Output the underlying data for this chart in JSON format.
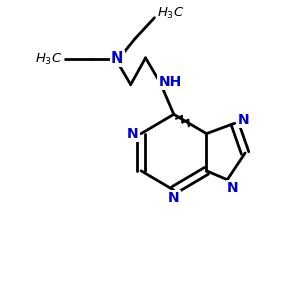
{
  "bg_color": "#ffffff",
  "bond_color": "#000000",
  "nitrogen_color": "#0000cc",
  "figsize": [
    3.0,
    3.0
  ],
  "dpi": 100,
  "xlim": [
    0,
    10
  ],
  "ylim": [
    0,
    10
  ]
}
